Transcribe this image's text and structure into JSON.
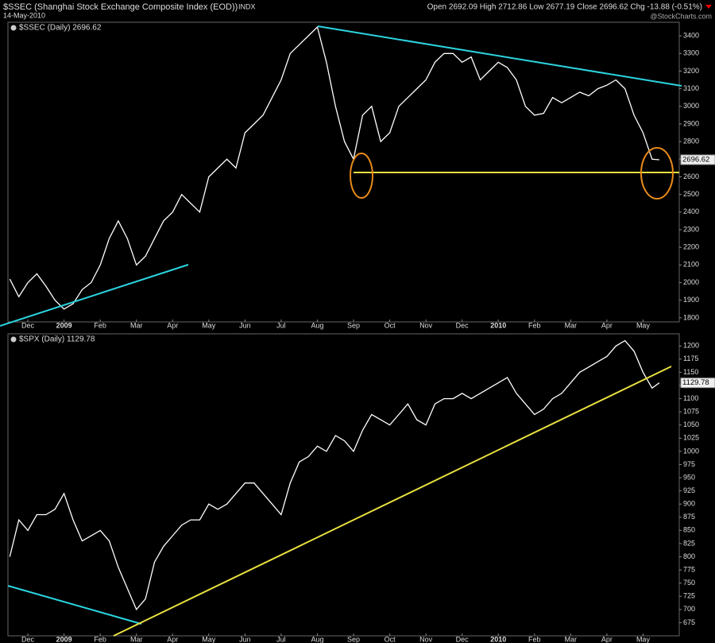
{
  "chart_data": [
    {
      "type": "line",
      "title": "$SSEC (Shanghai Stock Exchange Composite Index (EOD))",
      "exchange": "INDX",
      "date": "14-May-2010",
      "quote": "Open 2692.09 High 2712.86 Low 2677.19 Close 2696.62 Chg -13.88 (-0.51%)",
      "source": "@StockCharts.com",
      "label": "$SSEC (Daily) 2696.62",
      "last_label": "2696.62",
      "x": [
        -0.5,
        -0.25,
        0,
        0.25,
        0.5,
        0.75,
        1,
        1.25,
        1.5,
        1.75,
        2,
        2.25,
        2.5,
        2.75,
        3,
        3.25,
        3.5,
        3.75,
        4,
        4.25,
        4.5,
        4.75,
        5,
        5.25,
        5.5,
        5.75,
        6,
        6.25,
        6.5,
        6.75,
        7,
        7.25,
        7.5,
        7.75,
        8,
        8.25,
        8.5,
        8.75,
        9,
        9.25,
        9.5,
        9.75,
        10,
        10.25,
        10.5,
        10.75,
        11,
        11.25,
        11.5,
        11.75,
        12,
        12.25,
        12.5,
        12.75,
        13,
        13.25,
        13.5,
        13.75,
        14,
        14.25,
        14.5,
        14.75,
        15,
        15.25,
        15.5,
        15.75,
        16,
        16.25,
        16.5,
        16.75,
        17,
        17.25,
        17.45
      ],
      "series": [
        {
          "name": "$SSEC",
          "color": "#ffffff",
          "values": [
            2020,
            1920,
            2000,
            2050,
            1980,
            1900,
            1850,
            1880,
            1960,
            2000,
            2100,
            2250,
            2350,
            2250,
            2100,
            2150,
            2250,
            2350,
            2400,
            2500,
            2450,
            2400,
            2600,
            2650,
            2700,
            2650,
            2850,
            2900,
            2950,
            3050,
            3150,
            3300,
            3350,
            3400,
            3450,
            3250,
            3000,
            2800,
            2700,
            2950,
            3000,
            2800,
            2850,
            3000,
            3050,
            3100,
            3150,
            3250,
            3300,
            3300,
            3250,
            3280,
            3150,
            3200,
            3250,
            3220,
            3150,
            3000,
            2950,
            2960,
            3050,
            3020,
            3050,
            3080,
            3060,
            3100,
            3120,
            3150,
            3100,
            2950,
            2850,
            2700,
            2697
          ]
        }
      ],
      "xlim": [
        -0.55,
        18
      ],
      "xticks": [
        {
          "value": 0,
          "label": "Dec"
        },
        {
          "value": 1,
          "label": "2009"
        },
        {
          "value": 2,
          "label": "Feb"
        },
        {
          "value": 3,
          "label": "Mar"
        },
        {
          "value": 4,
          "label": "Apr"
        },
        {
          "value": 5,
          "label": "May"
        },
        {
          "value": 6,
          "label": "Jun"
        },
        {
          "value": 7,
          "label": "Jul"
        },
        {
          "value": 8,
          "label": "Aug"
        },
        {
          "value": 9,
          "label": "Sep"
        },
        {
          "value": 10,
          "label": "Oct"
        },
        {
          "value": 11,
          "label": "Nov"
        },
        {
          "value": 12,
          "label": "Dec"
        },
        {
          "value": 13,
          "label": "2010"
        },
        {
          "value": 14,
          "label": "Feb"
        },
        {
          "value": 15,
          "label": "Mar"
        },
        {
          "value": 16,
          "label": "Apr"
        },
        {
          "value": 17,
          "label": "May"
        }
      ],
      "ylim": [
        1777,
        3477
      ],
      "yticks": [
        1800,
        1900,
        2000,
        2100,
        2200,
        2300,
        2400,
        2500,
        2600,
        2700,
        2800,
        2900,
        3000,
        3100,
        3200,
        3300,
        3400
      ]
    },
    {
      "type": "line",
      "label": "$SPX (Daily) 1129.78",
      "last_label": "1129.78",
      "x": [
        -0.5,
        -0.25,
        0,
        0.25,
        0.5,
        0.75,
        1,
        1.25,
        1.5,
        1.75,
        2,
        2.25,
        2.5,
        2.75,
        3,
        3.25,
        3.5,
        3.75,
        4,
        4.25,
        4.5,
        4.75,
        5,
        5.25,
        5.5,
        5.75,
        6,
        6.25,
        6.5,
        6.75,
        7,
        7.25,
        7.5,
        7.75,
        8,
        8.25,
        8.5,
        8.75,
        9,
        9.25,
        9.5,
        9.75,
        10,
        10.25,
        10.5,
        10.75,
        11,
        11.25,
        11.5,
        11.75,
        12,
        12.25,
        12.5,
        12.75,
        13,
        13.25,
        13.5,
        13.75,
        14,
        14.25,
        14.5,
        14.75,
        15,
        15.25,
        15.5,
        15.75,
        16,
        16.25,
        16.5,
        16.75,
        17,
        17.25,
        17.45
      ],
      "series": [
        {
          "name": "$SPX",
          "color": "#ffffff",
          "values": [
            800,
            870,
            850,
            880,
            880,
            890,
            920,
            870,
            830,
            840,
            850,
            830,
            780,
            740,
            700,
            720,
            790,
            820,
            840,
            860,
            870,
            870,
            900,
            890,
            900,
            920,
            940,
            940,
            920,
            900,
            880,
            940,
            980,
            990,
            1010,
            1000,
            1030,
            1020,
            1000,
            1040,
            1070,
            1060,
            1050,
            1070,
            1090,
            1060,
            1050,
            1090,
            1100,
            1100,
            1110,
            1100,
            1110,
            1120,
            1130,
            1140,
            1110,
            1090,
            1070,
            1080,
            1100,
            1110,
            1130,
            1150,
            1160,
            1170,
            1180,
            1200,
            1210,
            1190,
            1150,
            1120,
            1130
          ]
        }
      ],
      "xlim": [
        -0.55,
        18
      ],
      "xticks": [
        {
          "value": 0,
          "label": "Dec"
        },
        {
          "value": 1,
          "label": "2009"
        },
        {
          "value": 2,
          "label": "Feb"
        },
        {
          "value": 3,
          "label": "Mar"
        },
        {
          "value": 4,
          "label": "Apr"
        },
        {
          "value": 5,
          "label": "May"
        },
        {
          "value": 6,
          "label": "Jun"
        },
        {
          "value": 7,
          "label": "Jul"
        },
        {
          "value": 8,
          "label": "Aug"
        },
        {
          "value": 9,
          "label": "Sep"
        },
        {
          "value": 10,
          "label": "Oct"
        },
        {
          "value": 11,
          "label": "Nov"
        },
        {
          "value": 12,
          "label": "Dec"
        },
        {
          "value": 13,
          "label": "2010"
        },
        {
          "value": 14,
          "label": "Feb"
        },
        {
          "value": 15,
          "label": "Mar"
        },
        {
          "value": 16,
          "label": "Apr"
        },
        {
          "value": 17,
          "label": "May"
        }
      ],
      "ylim": [
        650,
        1223
      ],
      "yticks": [
        675,
        700,
        725,
        750,
        775,
        800,
        825,
        850,
        875,
        900,
        925,
        950,
        975,
        1000,
        1025,
        1050,
        1075,
        1100,
        1125,
        1150,
        1175,
        1200
      ]
    }
  ]
}
